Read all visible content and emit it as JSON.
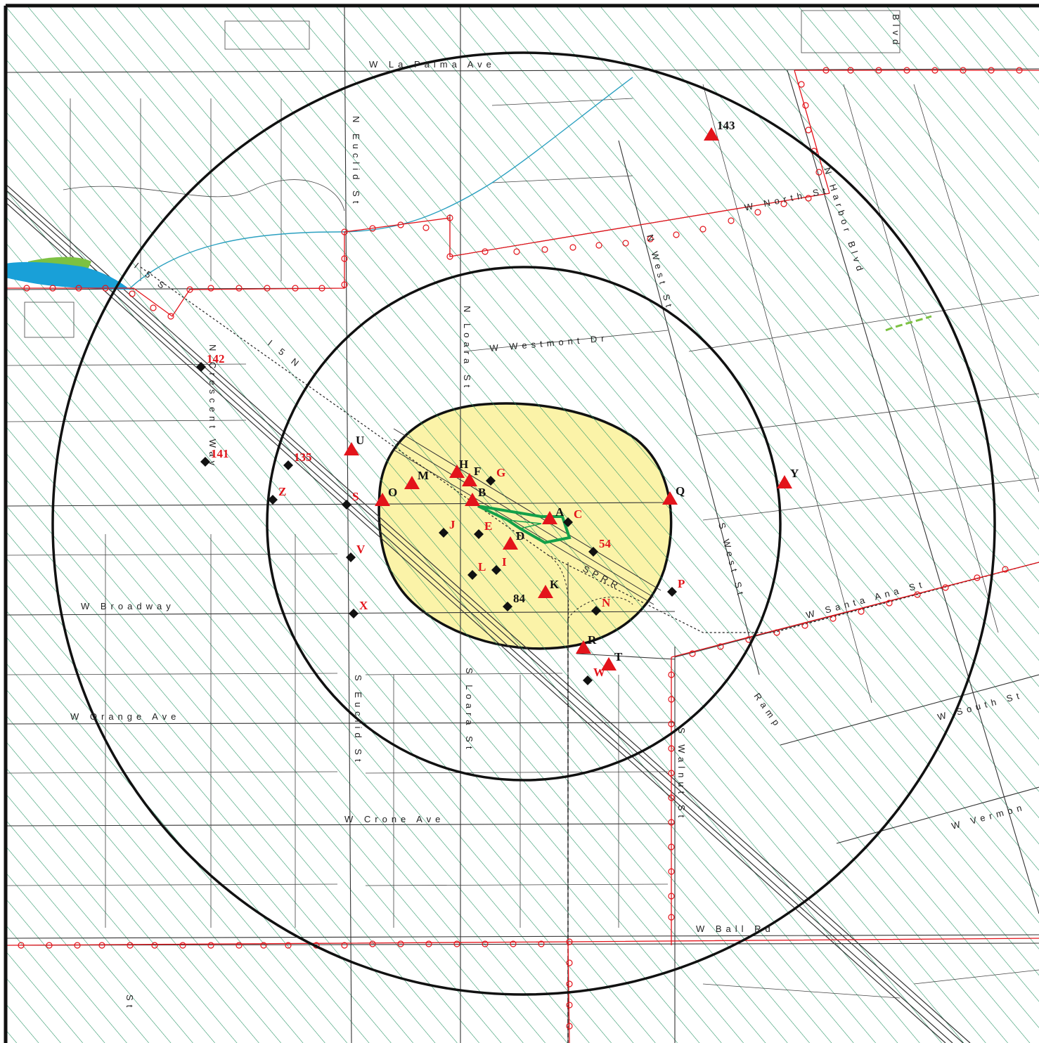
{
  "map": {
    "colors": {
      "hatch": "#1f8f5f",
      "red_line": "#e3141b",
      "study_area_fill": "#fbf3a8",
      "circle": "#111111",
      "water": "#19a0d8",
      "vegetation": "#7cc142",
      "facility_outline": "#14a04a"
    },
    "streets": {
      "la_palma": "W La Palma Ave",
      "euclid_n": "N Euclid St",
      "loara_n": "N Loara St",
      "westmont": "W Westmont Dr",
      "north_st": "W North St",
      "harbor": "N Harbor Blvd",
      "west_st_n": "N West St",
      "west_st_s": "S West St",
      "crescent": "N Crescent Way",
      "broadway": "W Broadway",
      "orange": "W Orange Ave",
      "euclid_s": "S Euclid St",
      "loara_s": "S Loara St",
      "walnut": "S Walnut St",
      "crone": "W Crone Ave",
      "ball": "W Ball Rd",
      "santa_ana": "W Santa Ana St",
      "south_st": "W South St",
      "vermont": "W Vermon",
      "ramp": "Ramp",
      "i5": "I 5 S",
      "i5n": "I 5 N",
      "sprr": "SPRR",
      "blvd_top": "Blvd",
      "st_bottom": "St"
    },
    "triangles": [
      {
        "label": "143",
        "color": "black"
      },
      {
        "label": "U",
        "color": "black"
      },
      {
        "label": "H",
        "color": "black"
      },
      {
        "label": "F",
        "color": "black"
      },
      {
        "label": "M",
        "color": "black"
      },
      {
        "label": "O",
        "color": "black"
      },
      {
        "label": "B",
        "color": "black"
      },
      {
        "label": "A",
        "color": "black"
      },
      {
        "label": "D",
        "color": "black"
      },
      {
        "label": "K",
        "color": "black"
      },
      {
        "label": "Q",
        "color": "black"
      },
      {
        "label": "Y",
        "color": "black"
      },
      {
        "label": "R",
        "color": "black"
      },
      {
        "label": "T",
        "color": "black"
      }
    ],
    "diamonds": [
      {
        "label": "142",
        "color": "red"
      },
      {
        "label": "141",
        "color": "red"
      },
      {
        "label": "135",
        "color": "red"
      },
      {
        "label": "Z",
        "color": "red"
      },
      {
        "label": "S",
        "color": "red"
      },
      {
        "label": "V",
        "color": "red"
      },
      {
        "label": "X",
        "color": "red"
      },
      {
        "label": "J",
        "color": "red"
      },
      {
        "label": "E",
        "color": "red"
      },
      {
        "label": "G",
        "color": "red"
      },
      {
        "label": "C",
        "color": "red"
      },
      {
        "label": "L",
        "color": "red"
      },
      {
        "label": "I",
        "color": "red"
      },
      {
        "label": "54",
        "color": "red"
      },
      {
        "label": "84",
        "color": "black"
      },
      {
        "label": "N",
        "color": "red"
      },
      {
        "label": "P",
        "color": "red"
      },
      {
        "label": "W",
        "color": "red"
      }
    ]
  }
}
